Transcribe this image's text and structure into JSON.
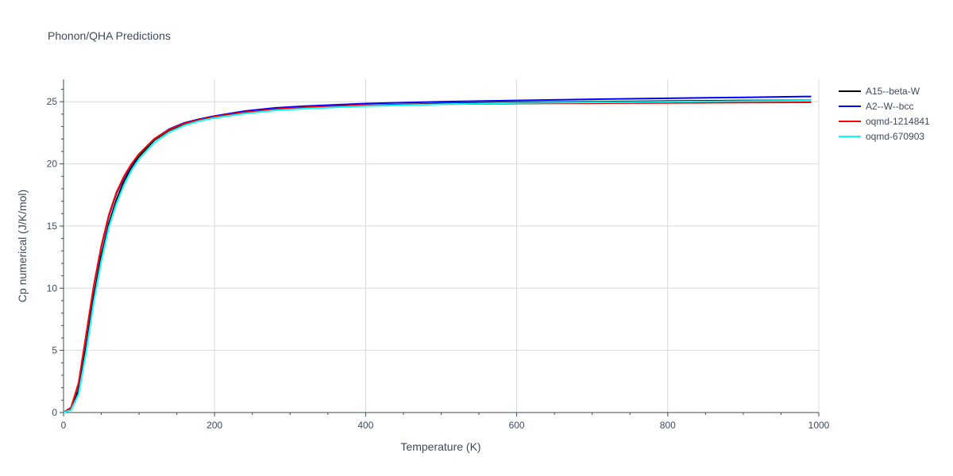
{
  "chart_data": {
    "type": "line",
    "title": "Phonon/QHA Predictions",
    "xlabel": "Temperature (K)",
    "ylabel": "Cp numerical (J/K/mol)",
    "xlim": [
      0,
      1000
    ],
    "ylim": [
      0,
      26.8
    ],
    "xticks": [
      0,
      200,
      400,
      600,
      800,
      1000
    ],
    "yticks": [
      0,
      5,
      10,
      15,
      20,
      25
    ],
    "xtick_labels": [
      "0",
      "200",
      "400",
      "600",
      "800",
      "1000"
    ],
    "ytick_labels": [
      "0",
      "5",
      "10",
      "15",
      "20",
      "25"
    ],
    "grid": true,
    "legend_position": "top-right",
    "series": [
      {
        "name": "A15--beta-W",
        "color": "#000000",
        "x": [
          0,
          10,
          20,
          30,
          40,
          50,
          60,
          70,
          80,
          90,
          100,
          120,
          140,
          160,
          180,
          200,
          240,
          280,
          320,
          360,
          400,
          500,
          600,
          700,
          800,
          900,
          990
        ],
        "y": [
          0,
          0.3,
          1.8,
          5.3,
          9.3,
          12.6,
          15.2,
          17.1,
          18.6,
          19.7,
          20.6,
          21.9,
          22.7,
          23.2,
          23.5,
          23.7,
          24.1,
          24.35,
          24.5,
          24.6,
          24.7,
          24.85,
          24.95,
          25.0,
          25.05,
          25.1,
          25.1
        ]
      },
      {
        "name": "A2--W--bcc",
        "color": "#0000ff",
        "x": [
          0,
          10,
          20,
          30,
          40,
          50,
          60,
          70,
          80,
          90,
          100,
          120,
          140,
          160,
          180,
          200,
          240,
          280,
          320,
          360,
          400,
          500,
          600,
          700,
          800,
          900,
          990
        ],
        "y": [
          0,
          0.4,
          2.3,
          6.2,
          10.1,
          13.3,
          15.8,
          17.6,
          18.9,
          19.9,
          20.8,
          22.0,
          22.8,
          23.3,
          23.6,
          23.85,
          24.25,
          24.5,
          24.65,
          24.75,
          24.85,
          25.0,
          25.1,
          25.2,
          25.28,
          25.35,
          25.42
        ]
      },
      {
        "name": "oqmd-1214841",
        "color": "#ff0000",
        "x": [
          0,
          10,
          20,
          30,
          40,
          50,
          60,
          70,
          80,
          90,
          100,
          120,
          140,
          160,
          180,
          200,
          240,
          280,
          320,
          360,
          400,
          500,
          600,
          700,
          800,
          900,
          990
        ],
        "y": [
          0,
          0.4,
          2.4,
          6.3,
          10.2,
          13.4,
          15.9,
          17.7,
          19.0,
          20.0,
          20.8,
          22.0,
          22.75,
          23.25,
          23.55,
          23.8,
          24.15,
          24.4,
          24.55,
          24.65,
          24.72,
          24.8,
          24.85,
          24.88,
          24.9,
          24.93,
          24.95
        ]
      },
      {
        "name": "oqmd-670903",
        "color": "#00ffff",
        "x": [
          0,
          10,
          20,
          30,
          40,
          50,
          60,
          70,
          80,
          90,
          100,
          120,
          140,
          160,
          180,
          200,
          240,
          280,
          320,
          360,
          400,
          500,
          600,
          700,
          800,
          900,
          990
        ],
        "y": [
          0,
          0.2,
          1.5,
          4.9,
          8.9,
          12.2,
          14.9,
          16.8,
          18.3,
          19.5,
          20.4,
          21.7,
          22.55,
          23.1,
          23.45,
          23.7,
          24.05,
          24.3,
          24.45,
          24.55,
          24.65,
          24.8,
          24.9,
          24.95,
          25.0,
          25.05,
          25.08
        ]
      }
    ]
  }
}
